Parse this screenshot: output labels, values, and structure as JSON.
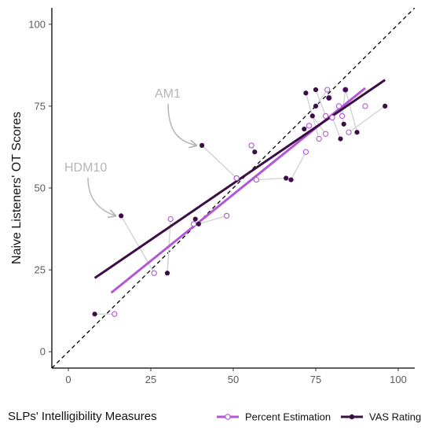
{
  "chart_data": {
    "type": "scatter",
    "xlabel": "SLPs' Intelligibility Measures",
    "ylabel": "Naive Listeners' OT Scores",
    "xlim": [
      -5,
      105
    ],
    "ylim": [
      -5,
      105
    ],
    "x_ticks": [
      "0",
      "25",
      "50",
      "75",
      "100"
    ],
    "y_ticks": [
      "0",
      "25",
      "50",
      "75",
      "100"
    ],
    "grid": false,
    "identity_line": true,
    "legend": {
      "position": "bottom"
    },
    "colors": {
      "percent": "#b355d6",
      "vas": "#3b0f45",
      "connector": "#d0d0d0",
      "identity": "#000000",
      "annotation": "#b5b5b5"
    },
    "series": [
      {
        "name": "Percent Estimation",
        "marker": "open-circle",
        "points": [
          [
            14,
            11.5
          ],
          [
            26,
            24
          ],
          [
            31,
            40.5
          ],
          [
            38,
            39
          ],
          [
            48,
            41.5
          ],
          [
            51,
            53
          ],
          [
            55.5,
            63
          ],
          [
            57,
            52.5
          ],
          [
            72,
            61
          ],
          [
            73,
            69
          ],
          [
            76,
            65
          ],
          [
            78,
            66.5
          ],
          [
            78,
            72
          ],
          [
            78.5,
            80
          ],
          [
            79,
            77.5
          ],
          [
            80,
            71.5
          ],
          [
            82,
            75
          ],
          [
            83,
            72
          ],
          [
            84,
            80
          ],
          [
            85,
            67
          ],
          [
            90,
            75
          ]
        ],
        "fit": {
          "x": [
            13,
            90
          ],
          "y": [
            18,
            80.5
          ]
        }
      },
      {
        "name": "VAS Rating",
        "marker": "filled-circle",
        "points": [
          [
            8,
            11.5
          ],
          [
            16,
            41.5
          ],
          [
            30,
            24
          ],
          [
            38.5,
            40.5
          ],
          [
            39.5,
            39
          ],
          [
            40.5,
            63
          ],
          [
            56.5,
            61
          ],
          [
            66,
            53
          ],
          [
            67.5,
            52.5
          ],
          [
            71.5,
            68
          ],
          [
            72,
            79
          ],
          [
            74,
            72
          ],
          [
            75,
            80
          ],
          [
            75,
            75
          ],
          [
            79,
            77.5
          ],
          [
            82.5,
            65
          ],
          [
            83.5,
            69.5
          ],
          [
            84,
            80
          ],
          [
            87.5,
            67
          ],
          [
            96,
            75
          ]
        ],
        "fit": {
          "x": [
            8,
            96
          ],
          "y": [
            22.5,
            83
          ]
        }
      }
    ],
    "annotations": [
      {
        "text": "AM1",
        "target": [
          40.5,
          63
        ]
      },
      {
        "text": "HDM10",
        "target": [
          16,
          41.5
        ]
      }
    ]
  }
}
